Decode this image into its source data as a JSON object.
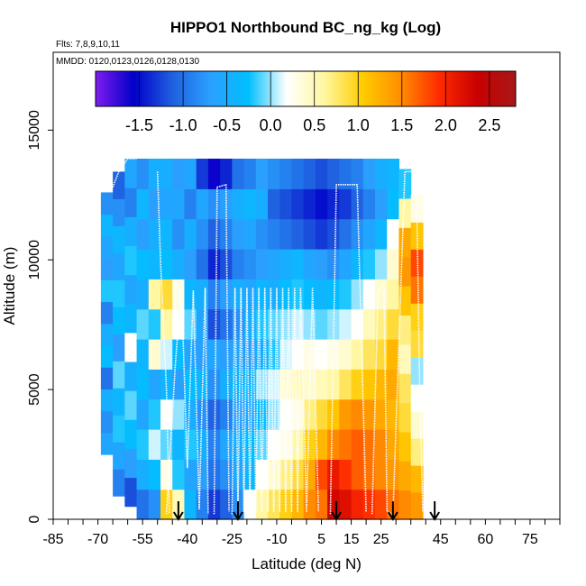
{
  "chart_data": {
    "type": "heatmap",
    "title": "HIPPO1 Northbound BC_ng_kg (Log)",
    "flights_label": "Flts: 7,8,9,10,11",
    "dates_label": "MMDD: 0120,0123,0126,0128,0130",
    "xlabel": "Latitude (deg N)",
    "ylabel": "Altitude (m)",
    "xlim": [
      -85,
      85
    ],
    "ylim": [
      0,
      18000
    ],
    "x_tick_labels": [
      "-85",
      "-70",
      "-55",
      "-40",
      "-25",
      "-10",
      "5",
      "15",
      "25",
      "45",
      "60",
      "75"
    ],
    "x_tick_values": [
      -85,
      -70,
      -55,
      -40,
      -25,
      -10,
      5,
      15,
      25,
      45,
      60,
      75
    ],
    "y_ticks": [
      0,
      5000,
      10000,
      15000
    ],
    "colorbar": {
      "range": [
        -2.0,
        2.8
      ],
      "ticks": [
        -1.5,
        -1.0,
        -0.5,
        0.0,
        0.5,
        1.0,
        1.5,
        2.0,
        2.5
      ],
      "tick_labels": [
        "-1.5",
        "-1.0",
        "-0.5",
        "0.0",
        "0.5",
        "1.0",
        "1.5",
        "2.0",
        "2.5"
      ],
      "colors": [
        "#7f1cf0",
        "#0000c8",
        "#1f5fe0",
        "#2aa0ff",
        "#00bfff",
        "#ffffff",
        "#fff7a0",
        "#ffcc00",
        "#ff8c00",
        "#ff2a00",
        "#c80000",
        "#a81818"
      ]
    },
    "columns": [
      {
        "lat": -67,
        "bottom": 2500,
        "top": 12600,
        "values": [
          -0.6,
          -0.8,
          -0.5,
          -1.0,
          -0.3,
          -0.5,
          -0.9,
          -0.2,
          -0.7,
          -0.6,
          -0.4,
          -0.8
        ]
      },
      {
        "lat": -63,
        "bottom": 900,
        "top": 13400,
        "values": [
          -0.9,
          -0.6,
          -0.2,
          -0.4,
          -0.1,
          -0.7,
          -0.3,
          -0.2,
          -0.6,
          -0.4,
          -0.8,
          -1.1
        ]
      },
      {
        "lat": -59,
        "bottom": 500,
        "top": 13900,
        "values": [
          -1.2,
          -0.7,
          -0.3,
          -0.1,
          -0.5,
          0.2,
          -0.4,
          -0.6,
          -0.2,
          -0.5,
          -0.9,
          -0.6
        ]
      },
      {
        "lat": -55,
        "bottom": 0,
        "top": 13900,
        "values": [
          -1.0,
          -0.5,
          -0.2,
          -0.6,
          -0.3,
          -0.4,
          -0.1,
          -0.5,
          -0.3,
          -0.7,
          -0.4,
          -0.8
        ]
      },
      {
        "lat": -51,
        "bottom": 0,
        "top": 13900,
        "values": [
          -0.8,
          -0.3,
          0.1,
          -0.2,
          -0.6,
          0.4,
          -0.2,
          0.6,
          -0.4,
          -0.5,
          -0.7,
          -0.5
        ]
      },
      {
        "lat": -47,
        "bottom": 0,
        "top": 13900,
        "values": [
          1.0,
          0.3,
          -0.1,
          0.2,
          -0.4,
          0.1,
          0.6,
          0.9,
          -0.3,
          -0.4,
          -0.6,
          -0.5
        ]
      },
      {
        "lat": -43,
        "bottom": 0,
        "top": 13900,
        "values": [
          0.5,
          -0.2,
          -0.4,
          0.0,
          -0.7,
          -0.3,
          0.2,
          0.3,
          -0.5,
          -0.8,
          -0.6,
          -0.7
        ]
      },
      {
        "lat": -39,
        "bottom": 0,
        "top": 13900,
        "values": [
          -0.4,
          -0.6,
          -0.2,
          -0.5,
          -0.3,
          -0.6,
          -0.1,
          -0.4,
          -0.7,
          -0.5,
          -0.9,
          -0.6
        ]
      },
      {
        "lat": -35,
        "bottom": 0,
        "top": 13900,
        "values": [
          -0.9,
          -0.7,
          -0.5,
          -0.8,
          -0.4,
          -0.7,
          -0.6,
          -0.5,
          -1.0,
          -0.8,
          -0.6,
          -1.3
        ]
      },
      {
        "lat": -31,
        "bottom": 0,
        "top": 13900,
        "values": [
          -1.3,
          -1.0,
          -0.9,
          -1.1,
          -0.8,
          -0.6,
          -1.2,
          -0.9,
          -1.4,
          -1.1,
          -0.8,
          -1.6
        ]
      },
      {
        "lat": -27,
        "bottom": 0,
        "top": 13900,
        "values": [
          -1.1,
          -0.8,
          -0.6,
          -0.9,
          -0.5,
          -0.7,
          -1.0,
          -0.7,
          -1.2,
          -0.9,
          -0.7,
          -1.4
        ]
      },
      {
        "lat": -23,
        "bottom": 0,
        "top": 13900,
        "values": [
          -0.8,
          -0.6,
          -0.5,
          -0.7,
          -0.4,
          -0.6,
          -0.8,
          -0.5,
          -0.9,
          -0.7,
          -0.5,
          -1.0
        ]
      },
      {
        "lat": -19,
        "bottom": 0,
        "top": 13900,
        "values": [
          0.2,
          -0.4,
          -0.3,
          -0.6,
          -0.4,
          -0.7,
          -0.5,
          -0.6,
          -0.8,
          -0.6,
          -0.4,
          -0.9
        ]
      },
      {
        "lat": -15,
        "bottom": 0,
        "top": 13900,
        "values": [
          0.6,
          0.2,
          -0.1,
          -0.3,
          0.0,
          -0.5,
          -0.2,
          -0.4,
          -0.7,
          -0.8,
          -0.5,
          -0.7
        ]
      },
      {
        "lat": -11,
        "bottom": 0,
        "top": 13900,
        "values": [
          0.8,
          0.4,
          0.2,
          0.0,
          0.1,
          -0.2,
          -0.1,
          -0.5,
          -0.6,
          -0.9,
          -1.1,
          -0.8
        ]
      },
      {
        "lat": -7,
        "bottom": 0,
        "top": 13900,
        "values": [
          1.0,
          0.7,
          0.3,
          0.2,
          0.4,
          0.1,
          0.0,
          -0.3,
          -0.5,
          -1.0,
          -1.2,
          -0.9
        ]
      },
      {
        "lat": -3,
        "bottom": 0,
        "top": 13900,
        "values": [
          1.2,
          0.9,
          0.6,
          0.3,
          0.5,
          0.2,
          0.1,
          -0.2,
          -0.4,
          -1.1,
          -1.3,
          -1.0
        ]
      },
      {
        "lat": 1,
        "bottom": 0,
        "top": 13900,
        "values": [
          1.5,
          1.3,
          1.0,
          0.7,
          0.4,
          0.3,
          0.0,
          -0.3,
          -0.6,
          -1.2,
          -1.4,
          -1.1
        ]
      },
      {
        "lat": 5,
        "bottom": 0,
        "top": 13900,
        "values": [
          1.6,
          1.8,
          1.2,
          0.9,
          0.5,
          0.2,
          -0.1,
          -0.4,
          -0.7,
          -1.3,
          -1.5,
          -1.2
        ]
      },
      {
        "lat": 9,
        "bottom": 0,
        "top": 13900,
        "values": [
          2.3,
          2.1,
          1.5,
          1.1,
          0.6,
          0.3,
          0.0,
          -0.3,
          -0.8,
          -1.2,
          -1.4,
          -1.1
        ]
      },
      {
        "lat": 13,
        "bottom": 0,
        "top": 13900,
        "values": [
          2.2,
          1.9,
          1.6,
          1.4,
          0.8,
          0.4,
          0.1,
          -0.2,
          -0.6,
          -1.0,
          -1.3,
          -1.0
        ]
      },
      {
        "lat": 17,
        "bottom": 0,
        "top": 13900,
        "values": [
          2.0,
          1.7,
          1.7,
          1.5,
          1.0,
          0.6,
          0.2,
          0.0,
          -0.4,
          -0.8,
          -1.1,
          -0.9
        ]
      },
      {
        "lat": 21,
        "bottom": 0,
        "top": 13900,
        "values": [
          1.9,
          1.6,
          1.6,
          1.4,
          1.1,
          0.8,
          0.5,
          0.2,
          -0.2,
          -0.6,
          -0.9,
          -0.7
        ]
      },
      {
        "lat": 25,
        "bottom": 0,
        "top": 13900,
        "values": [
          1.8,
          1.5,
          1.5,
          1.3,
          1.2,
          0.9,
          0.7,
          0.4,
          0.0,
          -0.4,
          -0.7,
          -0.5
        ]
      },
      {
        "lat": 29,
        "bottom": 0,
        "top": 13900,
        "values": [
          1.6,
          1.4,
          1.3,
          1.2,
          1.3,
          1.2,
          0.9,
          0.6,
          0.4,
          0.2,
          -0.3,
          -0.4
        ]
      },
      {
        "lat": 33,
        "bottom": 0,
        "top": 13500,
        "values": [
          1.5,
          1.3,
          1.1,
          0.9,
          0.8,
          0.5,
          0.7,
          1.1,
          1.4,
          1.3,
          0.6,
          -0.2
        ]
      },
      {
        "lat": 37,
        "bottom": 0,
        "top": 12500,
        "values": [
          1.4,
          1.2,
          0.7,
          0.4,
          0.2,
          0.0,
          0.9,
          1.0,
          1.6,
          1.8,
          1.1,
          0.3
        ]
      }
    ],
    "flight_tracks": [
      [
        [
          -65,
          12800
        ],
        [
          -63,
          13400
        ],
        [
          -60,
          13900
        ],
        [
          -57,
          13900
        ]
      ],
      [
        [
          -50,
          13400
        ],
        [
          -49,
          10000
        ],
        [
          -47,
          5000
        ],
        [
          -46,
          200
        ]
      ],
      [
        [
          -47,
          200
        ],
        [
          -44,
          6000
        ],
        [
          -42,
          9000
        ],
        [
          -40,
          2000
        ],
        [
          -38,
          8800
        ],
        [
          -36,
          400
        ],
        [
          -34,
          8900
        ],
        [
          -33,
          200
        ]
      ],
      [
        [
          -31,
          200
        ],
        [
          -30,
          12800
        ],
        [
          -27,
          12900
        ],
        [
          -26,
          300
        ]
      ],
      [
        [
          -25,
          200
        ],
        [
          -24,
          8900
        ],
        [
          -23,
          300
        ],
        [
          -22,
          8900
        ],
        [
          -21,
          300
        ],
        [
          -20,
          8900
        ],
        [
          -19,
          300
        ],
        [
          -18,
          8900
        ],
        [
          -17,
          300
        ],
        [
          -16,
          8900
        ],
        [
          -15,
          300
        ],
        [
          -14,
          8900
        ],
        [
          -13,
          300
        ],
        [
          -12,
          8900
        ],
        [
          -11,
          300
        ],
        [
          -10,
          8900
        ],
        [
          -9,
          300
        ],
        [
          -8,
          8900
        ],
        [
          -7,
          300
        ],
        [
          -6,
          8900
        ],
        [
          -5,
          300
        ],
        [
          -4,
          8900
        ],
        [
          -3,
          300
        ],
        [
          -2,
          8900
        ],
        [
          0,
          300
        ],
        [
          2,
          8900
        ],
        [
          4,
          300
        ]
      ],
      [
        [
          8,
          200
        ],
        [
          10,
          12900
        ],
        [
          14,
          12900
        ],
        [
          17,
          12900
        ],
        [
          20,
          300
        ]
      ],
      [
        [
          22,
          200
        ],
        [
          24,
          8800
        ],
        [
          26,
          9000
        ],
        [
          27,
          300
        ],
        [
          29,
          200
        ],
        [
          33,
          13400
        ],
        [
          36,
          13400
        ],
        [
          37,
          12000
        ],
        [
          38,
          5000
        ],
        [
          39,
          300
        ]
      ]
    ],
    "arrows_lat": [
      -43,
      -23,
      10,
      29,
      43
    ]
  }
}
